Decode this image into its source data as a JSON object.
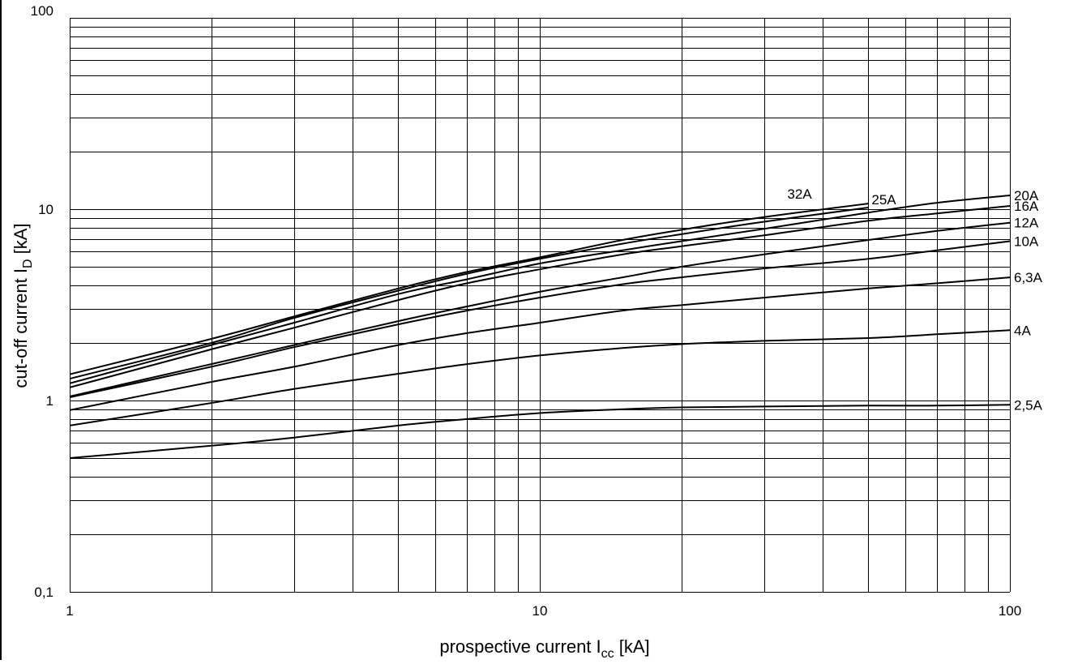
{
  "chart_data": {
    "type": "line",
    "title": "",
    "xlabel": {
      "main": "prospective current I",
      "sub": "cc",
      "unit": " [kA]"
    },
    "ylabel": {
      "main": "cut-off current I",
      "sub": "D",
      "unit": " [kA]"
    },
    "xscale": "log",
    "yscale": "log",
    "xlim": [
      1,
      100
    ],
    "ylim": [
      0.1,
      100
    ],
    "grid": true,
    "legend": "none",
    "x_tick_labels": [
      {
        "value": 1,
        "label": "1"
      },
      {
        "value": 10,
        "label": "10"
      },
      {
        "value": 100,
        "label": "100"
      }
    ],
    "y_tick_labels": [
      {
        "value": 0.1,
        "label": "0,1"
      },
      {
        "value": 1,
        "label": "1"
      },
      {
        "value": 10,
        "label": "10"
      },
      {
        "value": 100,
        "label": "100"
      }
    ],
    "series": [
      {
        "name": "32A",
        "x": [
          1,
          2,
          3,
          5,
          7,
          10,
          15,
          20,
          30,
          50
        ],
        "y": [
          1.37,
          2.1,
          2.75,
          3.85,
          4.7,
          5.6,
          6.9,
          7.8,
          9.1,
          10.7
        ]
      },
      {
        "name": "25A",
        "x": [
          1,
          2,
          3,
          5,
          7,
          10,
          15,
          20,
          30,
          50
        ],
        "y": [
          1.3,
          2.0,
          2.7,
          3.75,
          4.6,
          5.5,
          6.6,
          7.4,
          8.6,
          10.2
        ]
      },
      {
        "name": "20A",
        "x": [
          1,
          2,
          3,
          5,
          7,
          10,
          15,
          20,
          30,
          50,
          70,
          100
        ],
        "y": [
          1.23,
          1.95,
          2.55,
          3.6,
          4.3,
          5.2,
          6.1,
          6.8,
          7.9,
          9.6,
          10.8,
          11.8
        ]
      },
      {
        "name": "16A",
        "x": [
          1,
          2,
          3,
          5,
          7,
          10,
          15,
          20,
          30,
          50,
          70,
          100
        ],
        "y": [
          1.17,
          1.85,
          2.4,
          3.35,
          4.1,
          4.85,
          5.8,
          6.4,
          7.3,
          8.7,
          9.5,
          10.4
        ]
      },
      {
        "name": "12A",
        "x": [
          1,
          2,
          3,
          5,
          7,
          10,
          15,
          20,
          30,
          50,
          70,
          100
        ],
        "y": [
          1.05,
          1.55,
          1.95,
          2.6,
          3.1,
          3.7,
          4.4,
          5.0,
          5.8,
          6.9,
          7.7,
          8.5
        ]
      },
      {
        "name": "10A",
        "x": [
          1,
          2,
          3,
          5,
          7,
          10,
          15,
          20,
          30,
          50,
          70,
          100
        ],
        "y": [
          1.04,
          1.5,
          1.9,
          2.5,
          2.95,
          3.45,
          4.05,
          4.4,
          4.9,
          5.5,
          6.1,
          6.8
        ]
      },
      {
        "name": "6,3A",
        "x": [
          1,
          2,
          3,
          5,
          7,
          10,
          15,
          20,
          30,
          50,
          70,
          100
        ],
        "y": [
          0.89,
          1.25,
          1.5,
          1.95,
          2.25,
          2.55,
          2.95,
          3.15,
          3.45,
          3.85,
          4.1,
          4.4
        ]
      },
      {
        "name": "4A",
        "x": [
          1,
          2,
          3,
          5,
          7,
          10,
          15,
          20,
          30,
          50,
          70,
          100
        ],
        "y": [
          0.74,
          0.97,
          1.15,
          1.38,
          1.55,
          1.72,
          1.88,
          1.97,
          2.05,
          2.12,
          2.22,
          2.33
        ]
      },
      {
        "name": "2,5A",
        "x": [
          1,
          2,
          3,
          5,
          7,
          10,
          15,
          20,
          30,
          50,
          70,
          100
        ],
        "y": [
          0.5,
          0.58,
          0.64,
          0.74,
          0.8,
          0.86,
          0.9,
          0.92,
          0.93,
          0.94,
          0.94,
          0.95
        ]
      }
    ]
  }
}
